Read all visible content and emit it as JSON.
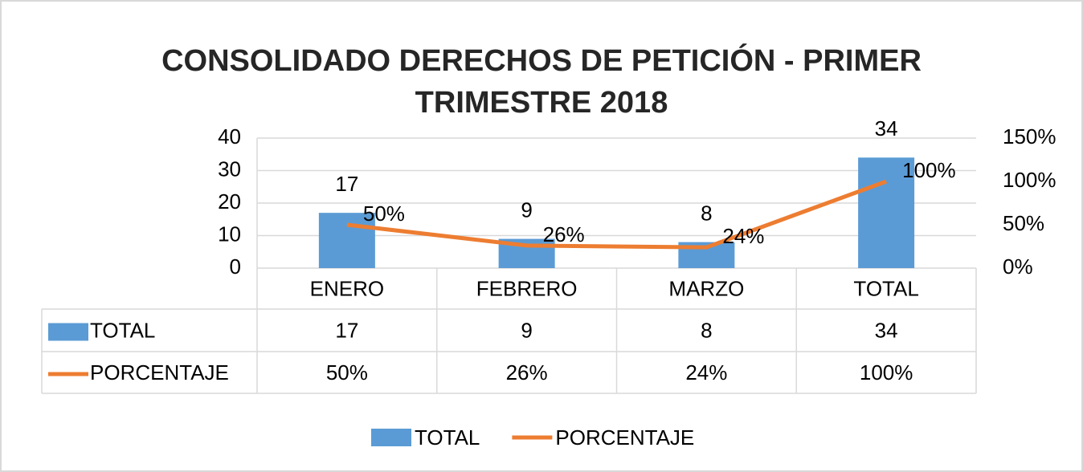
{
  "chart_data": {
    "type": "bar_line_table",
    "title": "CONSOLIDADO DERECHOS DE PETICIÓN - PRIMER TRIMESTRE 2018",
    "categories": [
      "ENERO",
      "FEBRERO",
      "MARZO",
      "TOTAL"
    ],
    "series": [
      {
        "name": "TOTAL",
        "type": "bar",
        "color": "#5b9bd5",
        "values": [
          17,
          9,
          8,
          34
        ]
      },
      {
        "name": "PORCENTAJE",
        "type": "line",
        "axis": "y2",
        "color": "#ed7d31",
        "values": [
          50,
          26,
          24,
          100
        ],
        "value_labels": [
          "50%",
          "26%",
          "24%",
          "100%"
        ]
      }
    ],
    "ylim": [
      0,
      40
    ],
    "yticks": [
      0,
      10,
      20,
      30,
      40
    ],
    "y2lim": [
      0,
      150
    ],
    "y2ticks": [
      {
        "value": 0,
        "label": "0%"
      },
      {
        "value": 50,
        "label": "50%"
      },
      {
        "value": 100,
        "label": "100%"
      },
      {
        "value": 150,
        "label": "150%"
      }
    ],
    "grid": true,
    "legend": "bottom"
  }
}
